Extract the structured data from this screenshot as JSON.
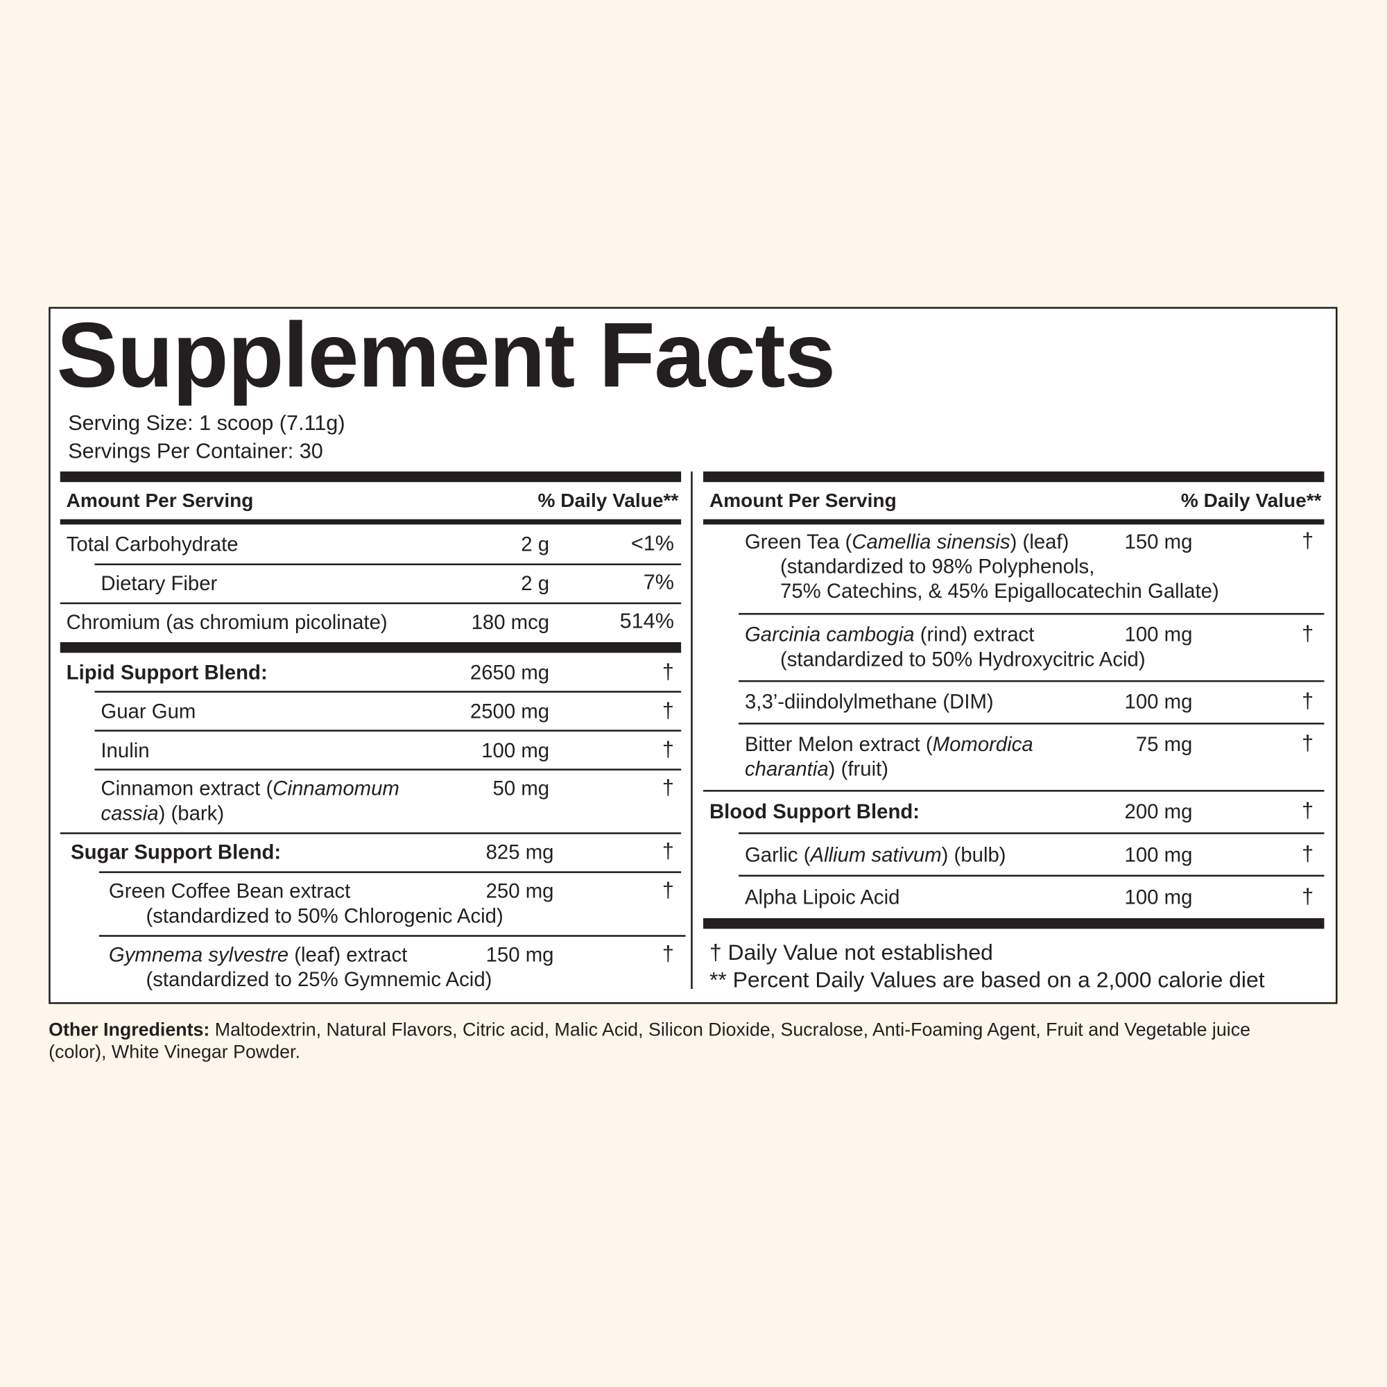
{
  "title": "Supplement Facts",
  "serving_size": "Serving Size: 1 scoop (7.11g)",
  "servings_per_container": "Servings Per Container: 30",
  "columns": [
    {
      "header": {
        "amount": "Amount Per Serving",
        "daily_value": "% Daily Value**"
      },
      "rows": [
        {
          "lines": [
            [
              {
                "text": "Total Carbohydrate"
              }
            ]
          ],
          "amount": "2 g",
          "daily_value": "<1%"
        },
        {
          "lines": [
            [
              {
                "text": "Dietary Fiber"
              }
            ]
          ],
          "amount": "2 g",
          "daily_value": "7%"
        },
        {
          "lines": [
            [
              {
                "text": "Chromium (as chromium picolinate)"
              }
            ]
          ],
          "amount": "180 mcg",
          "daily_value": "514%"
        },
        {
          "lines": [
            [
              {
                "text": "Lipid Support Blend:"
              }
            ]
          ],
          "amount": "2650 mg",
          "daily_value": "†"
        },
        {
          "lines": [
            [
              {
                "text": "Guar Gum"
              }
            ]
          ],
          "amount": "2500 mg",
          "daily_value": "†"
        },
        {
          "lines": [
            [
              {
                "text": "Inulin"
              }
            ]
          ],
          "amount": "100 mg",
          "daily_value": "†"
        },
        {
          "lines": [
            [
              {
                "text": "Cinnamon extract ("
              },
              {
                "text": "Cinnamomum",
                "italic": true
              }
            ],
            [
              {
                "text": "cassia",
                "italic": true
              },
              {
                "text": ") (bark)"
              }
            ]
          ],
          "amount": "50 mg",
          "daily_value": "†"
        },
        {
          "lines": [
            [
              {
                "text": "Sugar Support Blend:"
              }
            ]
          ],
          "amount": "825 mg",
          "daily_value": "†"
        },
        {
          "lines": [
            [
              {
                "text": "Green Coffee Bean extract"
              }
            ],
            [
              {
                "text": "(standardized to 50% Chlorogenic Acid)"
              }
            ]
          ],
          "amount": "250 mg",
          "daily_value": "†"
        },
        {
          "lines": [
            [
              {
                "text": "Gymnema sylvestre",
                "italic": true
              },
              {
                "text": " (leaf) extract"
              }
            ],
            [
              {
                "text": "(standardized to 25% Gymnemic Acid)"
              }
            ]
          ],
          "amount": "150 mg",
          "daily_value": "†"
        }
      ]
    },
    {
      "header": {
        "amount": "Amount Per Serving",
        "daily_value": "% Daily Value**"
      },
      "rows": [
        {
          "lines": [
            [
              {
                "text": "Green Tea ("
              },
              {
                "text": "Camellia sinensis",
                "italic": true
              },
              {
                "text": ") (leaf)"
              }
            ],
            [
              {
                "text": "(standardized to 98% Polyphenols,"
              }
            ],
            [
              {
                "text": "75% Catechins, & 45% Epigallocatechin Gallate)"
              }
            ]
          ],
          "amount": "150 mg",
          "daily_value": "†"
        },
        {
          "lines": [
            [
              {
                "text": "Garcinia cambogia",
                "italic": true
              },
              {
                "text": " (rind) extract"
              }
            ],
            [
              {
                "text": "(standardized to 50% Hydroxycitric Acid)"
              }
            ]
          ],
          "amount": "100 mg",
          "daily_value": "†"
        },
        {
          "lines": [
            [
              {
                "text": "3,3’-diindolylmethane (DIM)"
              }
            ]
          ],
          "amount": "100 mg",
          "daily_value": "†"
        },
        {
          "lines": [
            [
              {
                "text": "Bitter Melon extract ("
              },
              {
                "text": "Momordica",
                "italic": true
              }
            ],
            [
              {
                "text": "charantia",
                "italic": true
              },
              {
                "text": ") (fruit)"
              }
            ]
          ],
          "amount": "75 mg",
          "daily_value": "†"
        },
        {
          "lines": [
            [
              {
                "text": "Blood Support Blend:"
              }
            ]
          ],
          "amount": "200 mg",
          "daily_value": "†"
        },
        {
          "lines": [
            [
              {
                "text": "Garlic ("
              },
              {
                "text": "Allium sativum",
                "italic": true
              },
              {
                "text": ") (bulb)"
              }
            ]
          ],
          "amount": "100 mg",
          "daily_value": "†"
        },
        {
          "lines": [
            [
              {
                "text": "Alpha Lipoic Acid"
              }
            ]
          ],
          "amount": "100 mg",
          "daily_value": "†"
        }
      ]
    }
  ],
  "footnotes": [
    "† Daily Value not established",
    "** Percent Daily Values are based on a 2,000 calorie diet"
  ],
  "other_ingredients": {
    "label": "Other Ingredients:",
    "text": " Maltodextrin, Natural Flavors, Citric acid, Malic Acid, Silicon Dioxide, Sucralose, Anti-Foaming Agent, Fruit and Vegetable juice (color), White Vinegar Powder."
  }
}
